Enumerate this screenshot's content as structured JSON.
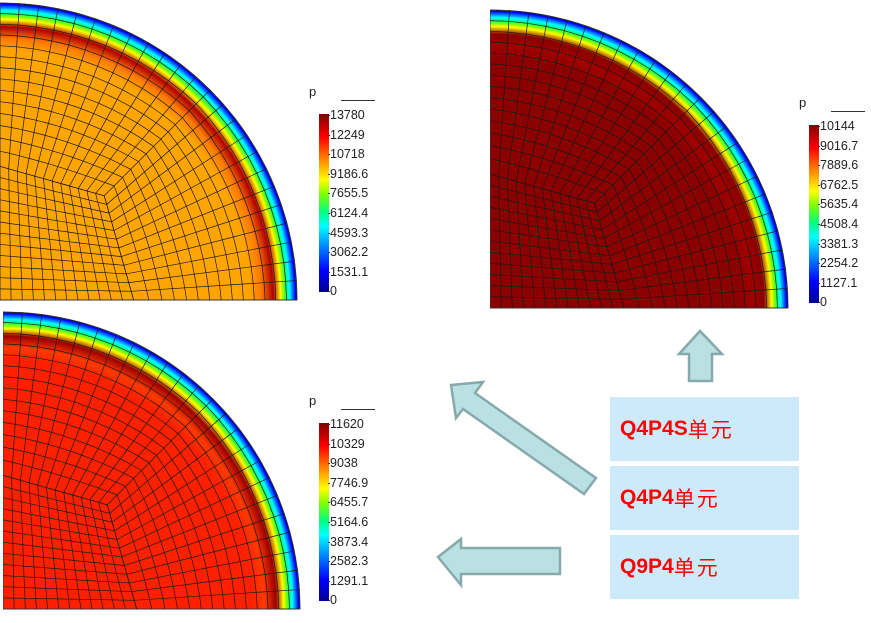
{
  "panels": [
    {
      "id": "q4p4s",
      "field_colors": {
        "interior": "#ffa500",
        "band_inner": "#ff7a00",
        "band_peak": "#b00000"
      },
      "colorbar": {
        "title": "p",
        "ticks": [
          "13780",
          "12249",
          "10718",
          "9186.6",
          "7655.5",
          "6124.4",
          "4593.3",
          "3062.2",
          "1531.1",
          "0"
        ]
      }
    },
    {
      "id": "q9p4",
      "field_colors": {
        "interior": "#8b0000",
        "band_inner": "#a00000",
        "band_peak": "#8b0000"
      },
      "colorbar": {
        "title": "p",
        "ticks": [
          "10144",
          "9016.7",
          "7889.6",
          "6762.5",
          "5635.4",
          "4508.4",
          "3381.3",
          "2254.2",
          "1127.1",
          "0"
        ]
      }
    },
    {
      "id": "q4p4",
      "field_colors": {
        "interior": "#ff2000",
        "band_inner": "#ff3a00",
        "band_peak": "#9a0000"
      },
      "colorbar": {
        "title": "p",
        "ticks": [
          "11620",
          "10329",
          "9038",
          "7746.9",
          "6455.7",
          "5164.6",
          "3873.4",
          "2582.3",
          "1291.1",
          "0"
        ]
      }
    }
  ],
  "legend_boxes": [
    {
      "code": "Q4P4S",
      "suffix": "单元"
    },
    {
      "code": "Q4P4",
      "suffix": "单元"
    },
    {
      "code": "Q9P4",
      "suffix": "单元"
    }
  ],
  "colors": {
    "box_bg": "#cdeafb",
    "box_text": "#ff0000",
    "arrow_fill": "#b9e0e3",
    "arrow_stroke": "#86a9ab",
    "mesh_line": "#1a1a1a"
  }
}
